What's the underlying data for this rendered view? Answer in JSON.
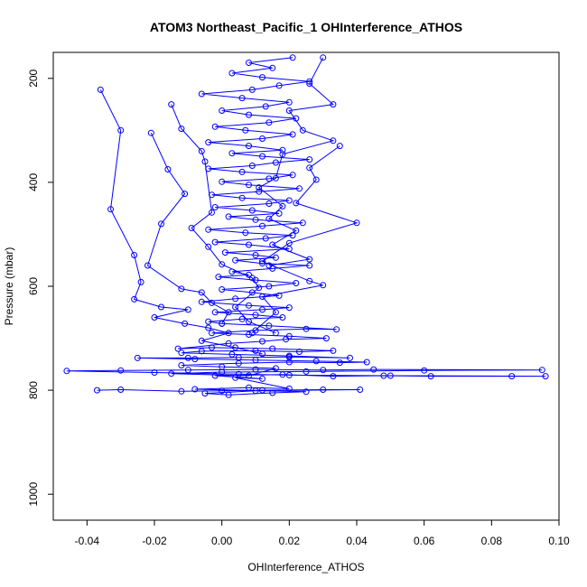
{
  "chart_data": {
    "type": "line",
    "title": "ATOM3 Northeast_Pacific_1 OHInterference_ATHOS",
    "xlabel": "OHInterference_ATHOS",
    "ylabel": "Pressure (mbar)",
    "xlim": [
      -0.05,
      0.1
    ],
    "ylim": [
      1050,
      150
    ],
    "y_reversed": true,
    "x_ticks": [
      -0.04,
      -0.02,
      0.0,
      0.02,
      0.04,
      0.06,
      0.08,
      0.1
    ],
    "x_tick_labels": [
      "-0.04",
      "-0.02",
      "0.00",
      "0.02",
      "0.04",
      "0.06",
      "0.08",
      "0.10"
    ],
    "y_ticks": [
      200,
      400,
      600,
      800,
      1000
    ],
    "y_tick_labels": [
      "200",
      "400",
      "600",
      "800",
      "1000"
    ],
    "grid": false,
    "series_color": "#0000ff",
    "marker": "open-circle",
    "series": [
      {
        "points": [
          [
            -0.037,
            800
          ],
          [
            -0.03,
            799
          ],
          [
            -0.012,
            802
          ],
          [
            0.0,
            801
          ],
          [
            0.012,
            800
          ],
          [
            0.03,
            799
          ],
          [
            0.041,
            799
          ],
          [
            0.01,
            801
          ],
          [
            -0.005,
            806
          ],
          [
            0.002,
            809
          ],
          [
            0.015,
            805
          ],
          [
            0.025,
            803
          ],
          [
            -0.008,
            798
          ],
          [
            0.008,
            795
          ],
          [
            0.02,
            797
          ],
          [
            0.004,
            776
          ],
          [
            0.012,
            778
          ],
          [
            -0.002,
            772
          ],
          [
            0.018,
            770
          ],
          [
            0.033,
            773
          ],
          [
            0.048,
            772
          ],
          [
            0.062,
            773
          ],
          [
            0.086,
            773
          ],
          [
            0.096,
            773
          ],
          [
            0.05,
            772
          ],
          [
            0.02,
            771
          ],
          [
            0.005,
            769
          ],
          [
            -0.02,
            766
          ],
          [
            -0.046,
            763
          ],
          [
            -0.03,
            762
          ],
          [
            -0.01,
            761
          ],
          [
            0.01,
            760
          ],
          [
            0.03,
            761
          ],
          [
            0.045,
            760
          ],
          [
            0.095,
            761
          ],
          [
            0.06,
            762
          ],
          [
            0.025,
            764
          ],
          [
            0.0,
            765
          ],
          [
            -0.015,
            768
          ],
          [
            0.008,
            772
          ],
          [
            0.016,
            758
          ],
          [
            0.0,
            755
          ],
          [
            -0.012,
            752
          ],
          [
            0.005,
            748
          ],
          [
            0.02,
            746
          ],
          [
            0.035,
            747
          ],
          [
            0.043,
            746
          ],
          [
            0.028,
            744
          ],
          [
            0.01,
            742
          ],
          [
            -0.008,
            740
          ],
          [
            -0.025,
            738
          ],
          [
            -0.01,
            738
          ],
          [
            0.005,
            737
          ],
          [
            0.02,
            736
          ],
          [
            0.038,
            738
          ],
          [
            0.02,
            734
          ],
          [
            0.003,
            731
          ],
          [
            -0.012,
            728
          ],
          [
            -0.006,
            725
          ],
          [
            0.01,
            724
          ],
          [
            0.023,
            726
          ],
          [
            0.033,
            724
          ],
          [
            0.015,
            720
          ],
          [
            -0.003,
            718
          ],
          [
            -0.013,
            720
          ],
          [
            0.002,
            710
          ],
          [
            0.012,
            706
          ],
          [
            0.019,
            702
          ],
          [
            0.031,
            700
          ],
          [
            0.02,
            696
          ],
          [
            0.008,
            693
          ],
          [
            -0.003,
            690
          ],
          [
            0.01,
            685
          ],
          [
            0.025,
            682
          ],
          [
            0.034,
            683
          ],
          [
            0.014,
            676
          ],
          [
            0.0,
            672
          ],
          [
            -0.004,
            668
          ],
          [
            0.006,
            663
          ],
          [
            0.018,
            660
          ],
          [
            0.01,
            655
          ],
          [
            -0.002,
            650
          ],
          [
            0.012,
            645
          ],
          [
            0.02,
            641
          ],
          [
            0.008,
            637
          ],
          [
            -0.006,
            630
          ],
          [
            0.004,
            624
          ],
          [
            0.017,
            618
          ],
          [
            0.009,
            612
          ],
          [
            0.0,
            606
          ],
          [
            0.014,
            600
          ],
          [
            0.022,
            594
          ],
          [
            0.01,
            588
          ],
          [
            -0.001,
            582
          ],
          [
            0.008,
            578
          ],
          [
            0.003,
            572
          ],
          [
            0.015,
            566
          ],
          [
            0.026,
            560
          ],
          [
            0.012,
            556
          ],
          [
            0.004,
            550
          ],
          [
            0.016,
            545
          ],
          [
            0.01,
            540
          ],
          [
            0.001,
            535
          ],
          [
            0.02,
            528
          ],
          [
            0.008,
            520
          ],
          [
            -0.002,
            515
          ],
          [
            0.013,
            508
          ],
          [
            0.021,
            502
          ],
          [
            0.007,
            497
          ],
          [
            -0.004,
            491
          ],
          [
            0.012,
            484
          ],
          [
            0.024,
            478
          ],
          [
            0.01,
            472
          ],
          [
            0.002,
            466
          ],
          [
            0.017,
            460
          ],
          [
            0.009,
            454
          ],
          [
            -0.002,
            448
          ],
          [
            0.014,
            441
          ],
          [
            0.02,
            435
          ],
          [
            0.006,
            430
          ],
          [
            -0.003,
            424
          ],
          [
            0.011,
            418
          ],
          [
            0.023,
            412
          ],
          [
            0.008,
            405
          ],
          [
            0.0,
            399
          ],
          [
            0.014,
            393
          ],
          [
            0.021,
            386
          ],
          [
            0.006,
            380
          ],
          [
            -0.004,
            374
          ],
          [
            0.009,
            368
          ],
          [
            0.016,
            362
          ],
          [
            0.026,
            356
          ],
          [
            0.012,
            350
          ],
          [
            0.003,
            344
          ],
          [
            0.018,
            338
          ],
          [
            0.008,
            330
          ],
          [
            -0.004,
            323
          ],
          [
            0.012,
            316
          ],
          [
            0.021,
            308
          ],
          [
            0.007,
            300
          ],
          [
            -0.002,
            293
          ],
          [
            0.014,
            285
          ],
          [
            0.022,
            277
          ],
          [
            0.008,
            270
          ],
          [
            0.0,
            262
          ],
          [
            0.013,
            254
          ],
          [
            0.02,
            246
          ],
          [
            0.006,
            238
          ],
          [
            -0.006,
            230
          ],
          [
            0.009,
            222
          ],
          [
            0.017,
            214
          ],
          [
            0.026,
            206
          ],
          [
            0.012,
            198
          ],
          [
            0.003,
            190
          ],
          [
            0.015,
            180
          ],
          [
            0.008,
            170
          ],
          [
            0.021,
            160
          ]
        ]
      },
      {
        "points": [
          [
            -0.036,
            222
          ],
          [
            -0.03,
            300
          ],
          [
            -0.033,
            452
          ],
          [
            -0.026,
            540
          ],
          [
            -0.024,
            592
          ],
          [
            -0.026,
            625
          ],
          [
            -0.018,
            640
          ],
          [
            -0.01,
            645
          ],
          [
            -0.02,
            660
          ],
          [
            -0.011,
            672
          ],
          [
            -0.004,
            680
          ],
          [
            0.002,
            690
          ],
          [
            -0.006,
            705
          ],
          [
            0.004,
            718
          ],
          [
            0.012,
            730
          ]
        ]
      },
      {
        "points": [
          [
            -0.021,
            305
          ],
          [
            -0.016,
            375
          ],
          [
            -0.011,
            422
          ],
          [
            -0.018,
            480
          ],
          [
            -0.022,
            560
          ],
          [
            -0.012,
            605
          ],
          [
            -0.006,
            612
          ],
          [
            -0.003,
            632
          ],
          [
            0.002,
            650
          ],
          [
            0.0,
            672
          ]
        ]
      },
      {
        "points": [
          [
            0.035,
            330
          ],
          [
            0.026,
            372
          ],
          [
            0.028,
            395
          ],
          [
            0.022,
            440
          ],
          [
            0.04,
            478
          ],
          [
            0.02,
            517
          ],
          [
            0.012,
            552
          ],
          [
            0.026,
            590
          ],
          [
            0.03,
            598
          ],
          [
            0.012,
            620
          ],
          [
            0.016,
            650
          ],
          [
            0.009,
            690
          ]
        ]
      },
      {
        "points": [
          [
            -0.015,
            250
          ],
          [
            -0.012,
            297
          ],
          [
            -0.006,
            340
          ],
          [
            -0.005,
            360
          ],
          [
            -0.003,
            458
          ],
          [
            -0.009,
            488
          ],
          [
            -0.004,
            524
          ],
          [
            0.0,
            558
          ],
          [
            0.009,
            584
          ],
          [
            0.011,
            603
          ],
          [
            0.004,
            640
          ],
          [
            0.008,
            668
          ],
          [
            0.016,
            690
          ]
        ]
      },
      {
        "points": [
          [
            0.03,
            160
          ],
          [
            0.026,
            210
          ],
          [
            0.033,
            250
          ],
          [
            0.02,
            262
          ],
          [
            0.024,
            300
          ],
          [
            0.033,
            320
          ],
          [
            0.018,
            346
          ],
          [
            0.016,
            392
          ],
          [
            0.011,
            410
          ],
          [
            0.018,
            446
          ],
          [
            0.014,
            470
          ],
          [
            0.022,
            493
          ],
          [
            0.015,
            520
          ],
          [
            0.026,
            548
          ],
          [
            0.014,
            560
          ]
        ]
      }
    ]
  }
}
